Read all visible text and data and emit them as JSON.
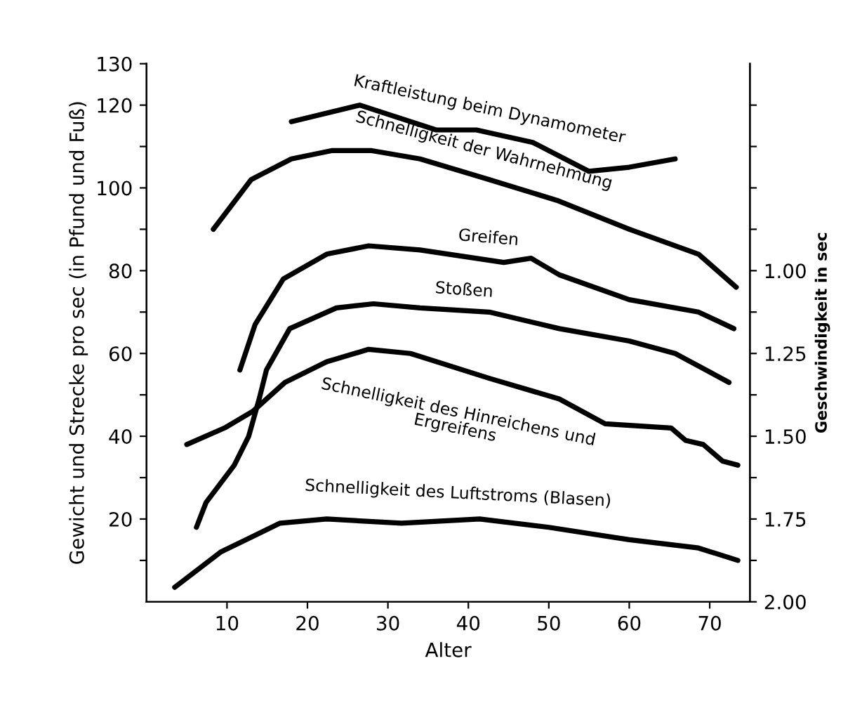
{
  "chart_data": {
    "type": "line",
    "xlabel": "Alter",
    "ylabel": "Gewicht und Strecke pro sec (in Pfund und Fuß)",
    "y2label": "Geschwindigkeit in sec",
    "xlim": [
      0,
      75
    ],
    "xticks": [
      10,
      20,
      30,
      40,
      50,
      60,
      70
    ],
    "ylim": [
      0,
      130
    ],
    "yticks": [
      {
        "value": 10,
        "label": null
      },
      20,
      {
        "value": 30,
        "label": null
      },
      40,
      {
        "value": 50,
        "label": null
      },
      60,
      {
        "value": 70,
        "label": null
      },
      80,
      {
        "value": 90,
        "label": null
      },
      100,
      {
        "value": 110,
        "label": null
      },
      120,
      130
    ],
    "y2lim": [
      2.0,
      0.375
    ],
    "y2ticks": [
      {
        "value": 2.0,
        "label": "2.00"
      },
      {
        "value": 1.875,
        "label": null
      },
      1.75,
      {
        "value": 1.625,
        "label": null
      },
      {
        "value": 1.5,
        "label": "1.50"
      },
      {
        "value": 1.375,
        "label": null
      },
      1.25,
      {
        "value": 1.125,
        "label": null
      },
      {
        "value": 1.0,
        "label": "1.00"
      },
      {
        "value": 0.875,
        "label": null
      },
      {
        "value": 0.75,
        "label": null
      },
      {
        "value": 0.625,
        "label": null
      },
      {
        "value": 0.5,
        "label": null
      }
    ],
    "grid": false,
    "legend": false,
    "marker": "none",
    "line_style": "solid",
    "series": [
      {
        "name": "Kraftleistung beim Dynamometer",
        "color": "#000000",
        "x": [
          18,
          26.5,
          36,
          41,
          48,
          55,
          60,
          65.7
        ],
        "values": [
          116,
          120,
          114,
          114,
          111,
          104,
          105,
          107
        ]
      },
      {
        "name": "Schnelligkeit der Wahrnehmung",
        "color": "#000000",
        "x": [
          8.3,
          13,
          18,
          23,
          28,
          34,
          42.6,
          51,
          60,
          68.6,
          73.3
        ],
        "values": [
          90,
          102,
          107,
          109,
          109,
          107,
          102,
          97,
          90,
          84,
          76
        ]
      },
      {
        "name": "Greifen",
        "color": "#000000",
        "x": [
          11.6,
          13.5,
          17,
          22.4,
          27.6,
          34,
          44.4,
          47.8,
          51.3,
          60,
          68.6,
          73
        ],
        "values": [
          56,
          67,
          78,
          84,
          86,
          85,
          82,
          83,
          79,
          73,
          70,
          66
        ]
      },
      {
        "name": "Stoßen",
        "color": "#000000",
        "x": [
          6.2,
          7.4,
          10.9,
          12.7,
          14,
          14.9,
          17.8,
          23.6,
          28.2,
          34,
          42.6,
          51.3,
          60,
          65.7,
          72.4
        ],
        "values": [
          18,
          24,
          33,
          40,
          49,
          56,
          66,
          71,
          72,
          71,
          70,
          66,
          63,
          60,
          53
        ]
      },
      {
        "name": "Schnelligkeit des Hinreichens und\nErgreifens",
        "color": "#000000",
        "x": [
          5,
          9.7,
          13.2,
          17.2,
          22.4,
          27.6,
          32.8,
          42.6,
          51.3,
          57,
          65.2,
          67,
          69.2,
          71.6,
          73.5
        ],
        "values": [
          38,
          42,
          46,
          53,
          58,
          61,
          60,
          54,
          49,
          43,
          42,
          39,
          38,
          34,
          33
        ]
      },
      {
        "name": "Schnelligkeit des Luftstroms (Blasen)",
        "color": "#000000",
        "x": [
          3.5,
          9.2,
          16.6,
          22.4,
          31.7,
          41.4,
          50,
          60,
          68.6,
          73.5
        ],
        "values": [
          3.5,
          12,
          19,
          20,
          19,
          20,
          18,
          15,
          13,
          10
        ]
      }
    ]
  }
}
